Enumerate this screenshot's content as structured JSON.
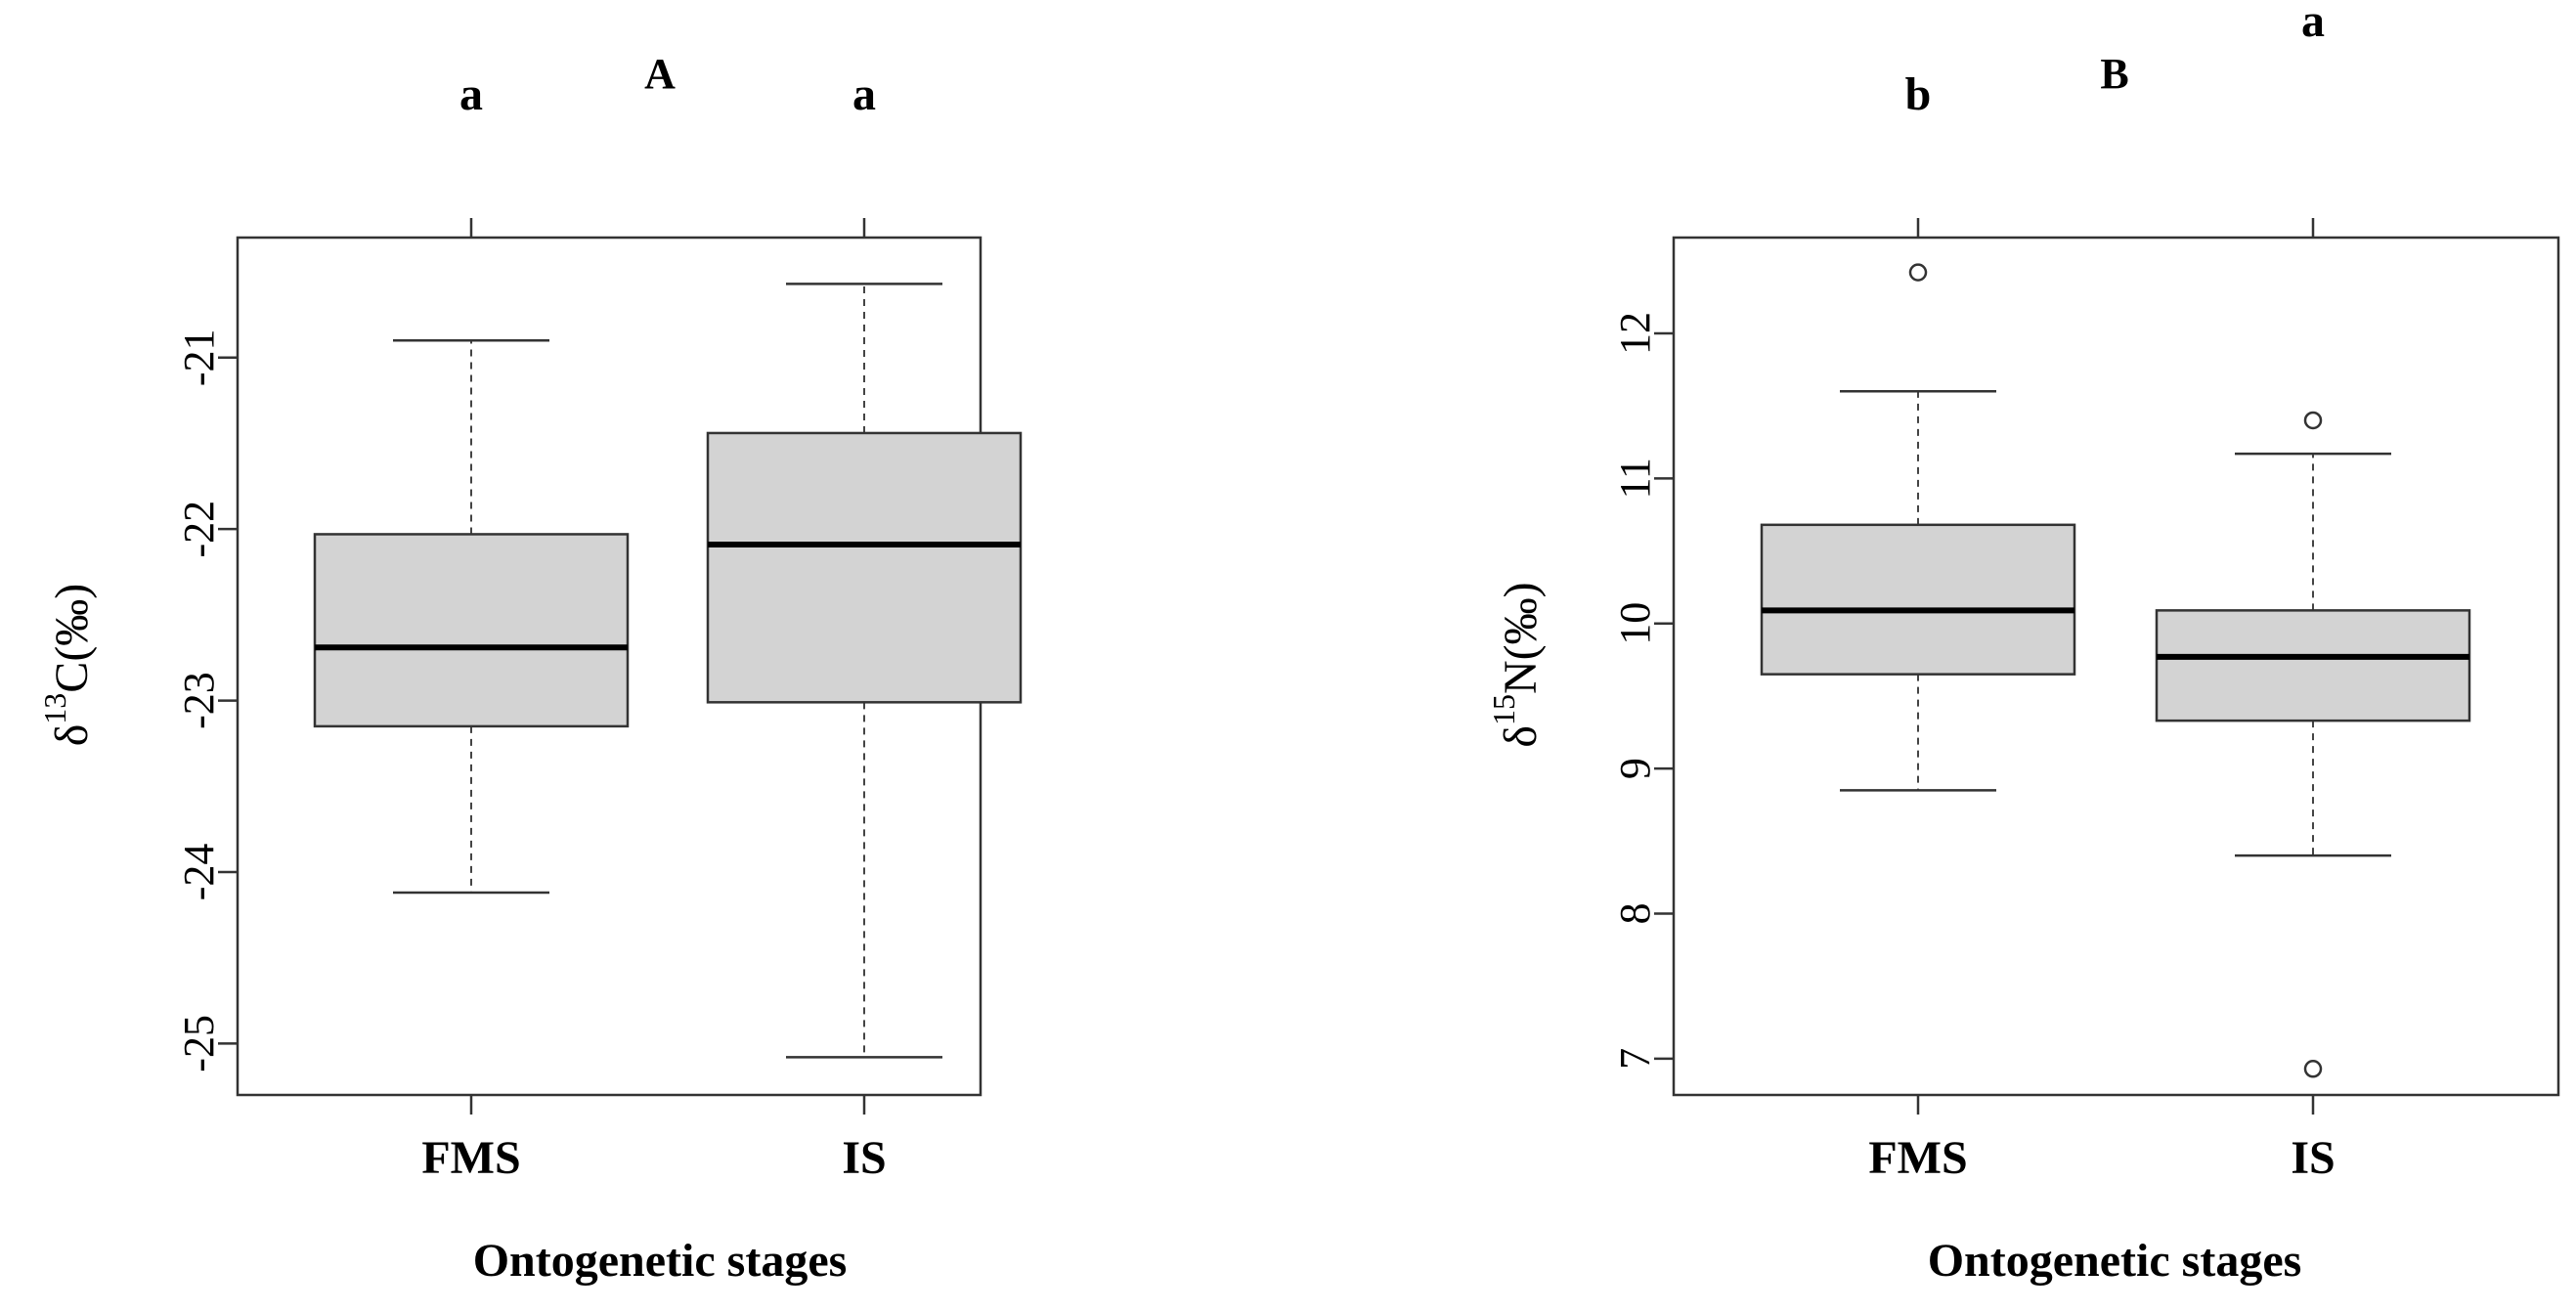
{
  "chart_data": [
    {
      "type": "box",
      "panel_label": "A",
      "categories": [
        "FMS",
        "IS"
      ],
      "group_letters": [
        "a",
        "a"
      ],
      "xlabel": "Ontogenetic stages",
      "ylabel": {
        "prefix": "δ",
        "sup": "13",
        "element": "C",
        "unit": "(‰)"
      },
      "ylim": [
        -25.3,
        -20.3
      ],
      "yticks": [
        -25,
        -24,
        -23,
        -22,
        -21
      ],
      "boxes": [
        {
          "name": "FMS",
          "whisker_low": -24.12,
          "q1": -23.15,
          "median": -22.69,
          "q3": -22.03,
          "whisker_high": -20.9,
          "outliers": []
        },
        {
          "name": "IS",
          "whisker_low": -25.08,
          "q1": -23.01,
          "median": -22.09,
          "q3": -21.44,
          "whisker_high": -20.57,
          "outliers": []
        }
      ],
      "box_fill": "#d3d3d3"
    },
    {
      "type": "box",
      "panel_label": "B",
      "categories": [
        "FMS",
        "IS"
      ],
      "group_letters": [
        "b",
        "a"
      ],
      "xlabel": "Ontogenetic stages",
      "ylabel": {
        "prefix": "δ",
        "sup": "15",
        "element": "N",
        "unit": "(‰)"
      },
      "ylim": [
        6.75,
        12.66
      ],
      "yticks": [
        7,
        8,
        9,
        10,
        11,
        12
      ],
      "boxes": [
        {
          "name": "FMS",
          "whisker_low": 8.85,
          "q1": 9.65,
          "median": 10.09,
          "q3": 10.68,
          "whisker_high": 11.6,
          "outliers": [
            12.42
          ]
        },
        {
          "name": "IS",
          "whisker_low": 8.4,
          "q1": 9.33,
          "median": 9.77,
          "q3": 10.09,
          "whisker_high": 11.17,
          "outliers": [
            11.4,
            6.93
          ]
        }
      ],
      "box_fill": "#d3d3d3"
    }
  ]
}
